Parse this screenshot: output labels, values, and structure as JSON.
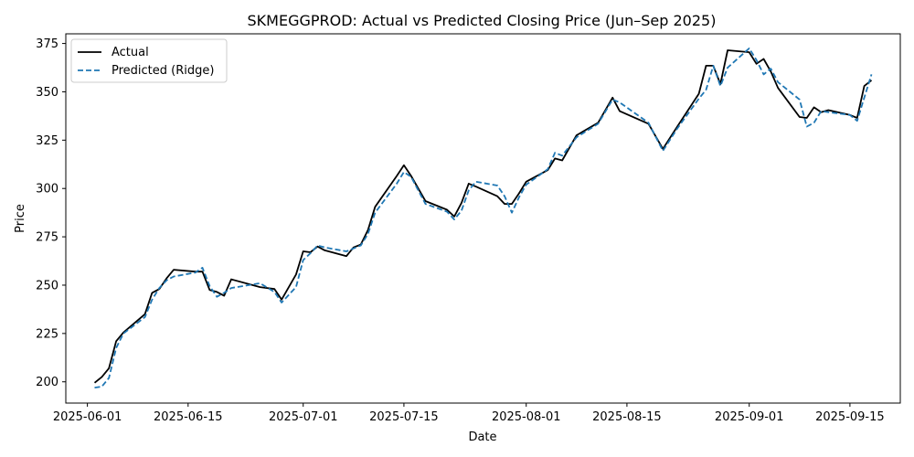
{
  "chart_data": {
    "type": "line",
    "title": "SKMEGGPROD: Actual vs Predicted Closing Price (Jun–Sep 2025)",
    "xlabel": "Date",
    "ylabel": "Price",
    "xlim": [
      "2025-05-29",
      "2025-09-22"
    ],
    "ylim": [
      189,
      380
    ],
    "x_ticks": [
      "2025-06-01",
      "2025-06-15",
      "2025-07-01",
      "2025-07-15",
      "2025-08-01",
      "2025-08-15",
      "2025-09-01",
      "2025-09-15"
    ],
    "y_ticks": [
      200,
      225,
      250,
      275,
      300,
      325,
      350,
      375
    ],
    "grid": false,
    "legend": {
      "position": "top-left",
      "entries": [
        "Actual",
        "Predicted (Ridge)"
      ]
    },
    "series": [
      {
        "name": "Actual",
        "color": "#000000",
        "style": "solid",
        "points": [
          [
            "2025-06-02",
            199.5
          ],
          [
            "2025-06-03",
            202.5
          ],
          [
            "2025-06-04",
            207.0
          ],
          [
            "2025-06-05",
            221.0
          ],
          [
            "2025-06-06",
            225.5
          ],
          [
            "2025-06-09",
            235.0
          ],
          [
            "2025-06-10",
            246.0
          ],
          [
            "2025-06-11",
            248.0
          ],
          [
            "2025-06-12",
            253.5
          ],
          [
            "2025-06-13",
            258.0
          ],
          [
            "2025-06-16",
            257.0
          ],
          [
            "2025-06-17",
            257.0
          ],
          [
            "2025-06-18",
            247.5
          ],
          [
            "2025-06-19",
            246.5
          ],
          [
            "2025-06-20",
            244.5
          ],
          [
            "2025-06-21",
            253.0
          ],
          [
            "2025-06-25",
            249.0
          ],
          [
            "2025-06-27",
            248.0
          ],
          [
            "2025-06-28",
            242.5
          ],
          [
            "2025-06-30",
            255.5
          ],
          [
            "2025-07-01",
            267.5
          ],
          [
            "2025-07-02",
            267.0
          ],
          [
            "2025-07-03",
            270.0
          ],
          [
            "2025-07-04",
            268.0
          ],
          [
            "2025-07-07",
            265.0
          ],
          [
            "2025-07-08",
            269.5
          ],
          [
            "2025-07-09",
            271.0
          ],
          [
            "2025-07-10",
            278.5
          ],
          [
            "2025-07-11",
            290.5
          ],
          [
            "2025-07-14",
            306.5
          ],
          [
            "2025-07-15",
            312.0
          ],
          [
            "2025-07-16",
            306.5
          ],
          [
            "2025-07-18",
            293.5
          ],
          [
            "2025-07-21",
            289.0
          ],
          [
            "2025-07-22",
            285.5
          ],
          [
            "2025-07-23",
            292.5
          ],
          [
            "2025-07-24",
            302.5
          ],
          [
            "2025-07-25",
            301.0
          ],
          [
            "2025-07-28",
            296.0
          ],
          [
            "2025-07-29",
            292.0
          ],
          [
            "2025-07-30",
            292.0
          ],
          [
            "2025-07-31",
            297.5
          ],
          [
            "2025-08-01",
            303.5
          ],
          [
            "2025-08-04",
            309.5
          ],
          [
            "2025-08-05",
            315.5
          ],
          [
            "2025-08-06",
            314.5
          ],
          [
            "2025-08-08",
            327.5
          ],
          [
            "2025-08-11",
            334.0
          ],
          [
            "2025-08-13",
            347.0
          ],
          [
            "2025-08-14",
            340.0
          ],
          [
            "2025-08-18",
            333.5
          ],
          [
            "2025-08-20",
            320.5
          ],
          [
            "2025-08-22",
            332.0
          ],
          [
            "2025-08-25",
            349.0
          ],
          [
            "2025-08-26",
            363.5
          ],
          [
            "2025-08-27",
            363.5
          ],
          [
            "2025-08-28",
            354.0
          ],
          [
            "2025-08-29",
            371.5
          ],
          [
            "2025-09-01",
            370.5
          ],
          [
            "2025-09-02",
            364.5
          ],
          [
            "2025-09-03",
            367.0
          ],
          [
            "2025-09-04",
            360.5
          ],
          [
            "2025-09-05",
            352.0
          ],
          [
            "2025-09-08",
            337.0
          ],
          [
            "2025-09-09",
            336.5
          ],
          [
            "2025-09-10",
            342.0
          ],
          [
            "2025-09-11",
            339.5
          ],
          [
            "2025-09-12",
            340.5
          ],
          [
            "2025-09-15",
            338.0
          ],
          [
            "2025-09-16",
            336.5
          ],
          [
            "2025-09-17",
            353.0
          ],
          [
            "2025-09-18",
            356.0
          ]
        ]
      },
      {
        "name": "Predicted (Ridge)",
        "color": "#1f77b4",
        "style": "dashed",
        "points": [
          [
            "2025-06-02",
            197.0
          ],
          [
            "2025-06-03",
            197.5
          ],
          [
            "2025-06-04",
            202.0
          ],
          [
            "2025-06-05",
            217.5
          ],
          [
            "2025-06-06",
            225.0
          ],
          [
            "2025-06-09",
            233.5
          ],
          [
            "2025-06-10",
            242.5
          ],
          [
            "2025-06-11",
            248.5
          ],
          [
            "2025-06-12",
            252.5
          ],
          [
            "2025-06-13",
            254.5
          ],
          [
            "2025-06-16",
            256.5
          ],
          [
            "2025-06-17",
            259.0
          ],
          [
            "2025-06-18",
            249.5
          ],
          [
            "2025-06-19",
            244.0
          ],
          [
            "2025-06-20",
            246.0
          ],
          [
            "2025-06-21",
            248.5
          ],
          [
            "2025-06-25",
            251.0
          ],
          [
            "2025-06-27",
            246.5
          ],
          [
            "2025-06-28",
            241.0
          ],
          [
            "2025-06-30",
            249.0
          ],
          [
            "2025-07-01",
            263.0
          ],
          [
            "2025-07-02",
            266.5
          ],
          [
            "2025-07-03",
            270.5
          ],
          [
            "2025-07-04",
            269.5
          ],
          [
            "2025-07-07",
            267.5
          ],
          [
            "2025-07-08",
            269.0
          ],
          [
            "2025-07-09",
            270.5
          ],
          [
            "2025-07-10",
            276.5
          ],
          [
            "2025-07-11",
            287.5
          ],
          [
            "2025-07-14",
            302.5
          ],
          [
            "2025-07-15",
            308.5
          ],
          [
            "2025-07-16",
            306.0
          ],
          [
            "2025-07-18",
            292.0
          ],
          [
            "2025-07-21",
            288.0
          ],
          [
            "2025-07-22",
            284.0
          ],
          [
            "2025-07-23",
            288.5
          ],
          [
            "2025-07-24",
            299.0
          ],
          [
            "2025-07-25",
            303.5
          ],
          [
            "2025-07-28",
            301.5
          ],
          [
            "2025-07-29",
            296.0
          ],
          [
            "2025-07-30",
            287.5
          ],
          [
            "2025-07-31",
            295.5
          ],
          [
            "2025-08-01",
            302.0
          ],
          [
            "2025-08-04",
            310.0
          ],
          [
            "2025-08-05",
            318.5
          ],
          [
            "2025-08-06",
            317.0
          ],
          [
            "2025-08-08",
            326.5
          ],
          [
            "2025-08-11",
            333.5
          ],
          [
            "2025-08-13",
            346.0
          ],
          [
            "2025-08-14",
            344.5
          ],
          [
            "2025-08-18",
            334.0
          ],
          [
            "2025-08-20",
            319.5
          ],
          [
            "2025-08-22",
            331.0
          ],
          [
            "2025-08-25",
            346.5
          ],
          [
            "2025-08-26",
            351.0
          ],
          [
            "2025-08-27",
            363.5
          ],
          [
            "2025-08-28",
            353.0
          ],
          [
            "2025-08-29",
            362.5
          ],
          [
            "2025-09-01",
            372.5
          ],
          [
            "2025-09-02",
            366.5
          ],
          [
            "2025-09-03",
            359.0
          ],
          [
            "2025-09-04",
            362.0
          ],
          [
            "2025-09-05",
            355.0
          ],
          [
            "2025-09-08",
            346.0
          ],
          [
            "2025-09-09",
            332.0
          ],
          [
            "2025-09-10",
            334.0
          ],
          [
            "2025-09-11",
            340.0
          ],
          [
            "2025-09-12",
            339.5
          ],
          [
            "2025-09-15",
            338.0
          ],
          [
            "2025-09-16",
            335.0
          ],
          [
            "2025-09-17",
            347.0
          ],
          [
            "2025-09-18",
            359.0
          ]
        ]
      }
    ]
  }
}
